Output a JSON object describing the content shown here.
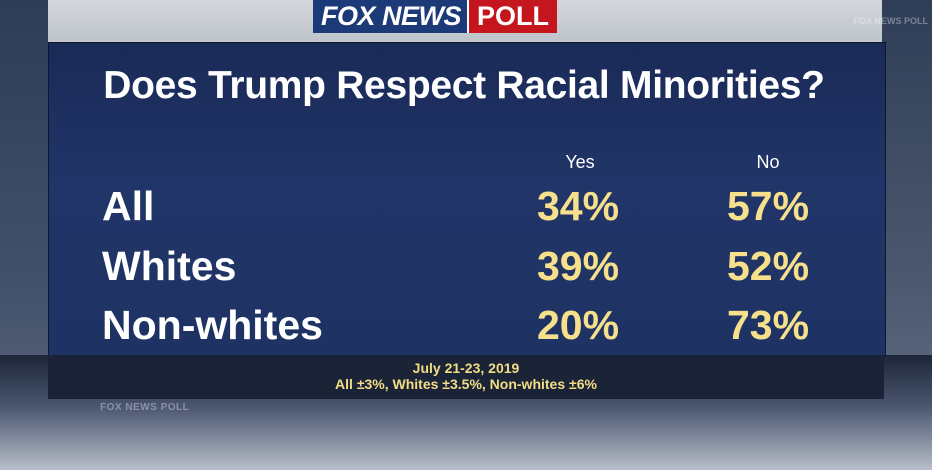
{
  "header": {
    "logo_main": "FOX NEWS",
    "logo_poll": "POLL"
  },
  "background": {
    "deco_left": "FOX NEWS POLL",
    "deco_right": "FOX NEWS POLL"
  },
  "colors": {
    "panel": "#1e3264",
    "value_text": "#f6e08c",
    "logo_blue": "#1c3a78",
    "logo_red": "#c4161c"
  },
  "chart_data": {
    "type": "table",
    "title": "Does Trump Respect Racial Minorities?",
    "columns": [
      "Yes",
      "No"
    ],
    "rows": [
      {
        "label": "All",
        "values": [
          "34%",
          "57%"
        ]
      },
      {
        "label": "Whites",
        "values": [
          "39%",
          "52%"
        ]
      },
      {
        "label": "Non-whites",
        "values": [
          "20%",
          "73%"
        ]
      }
    ]
  },
  "footnote": {
    "date": "July 21-23, 2019",
    "margin_of_error": "All ±3%, Whites ±3.5%, Non-whites ±6%"
  }
}
